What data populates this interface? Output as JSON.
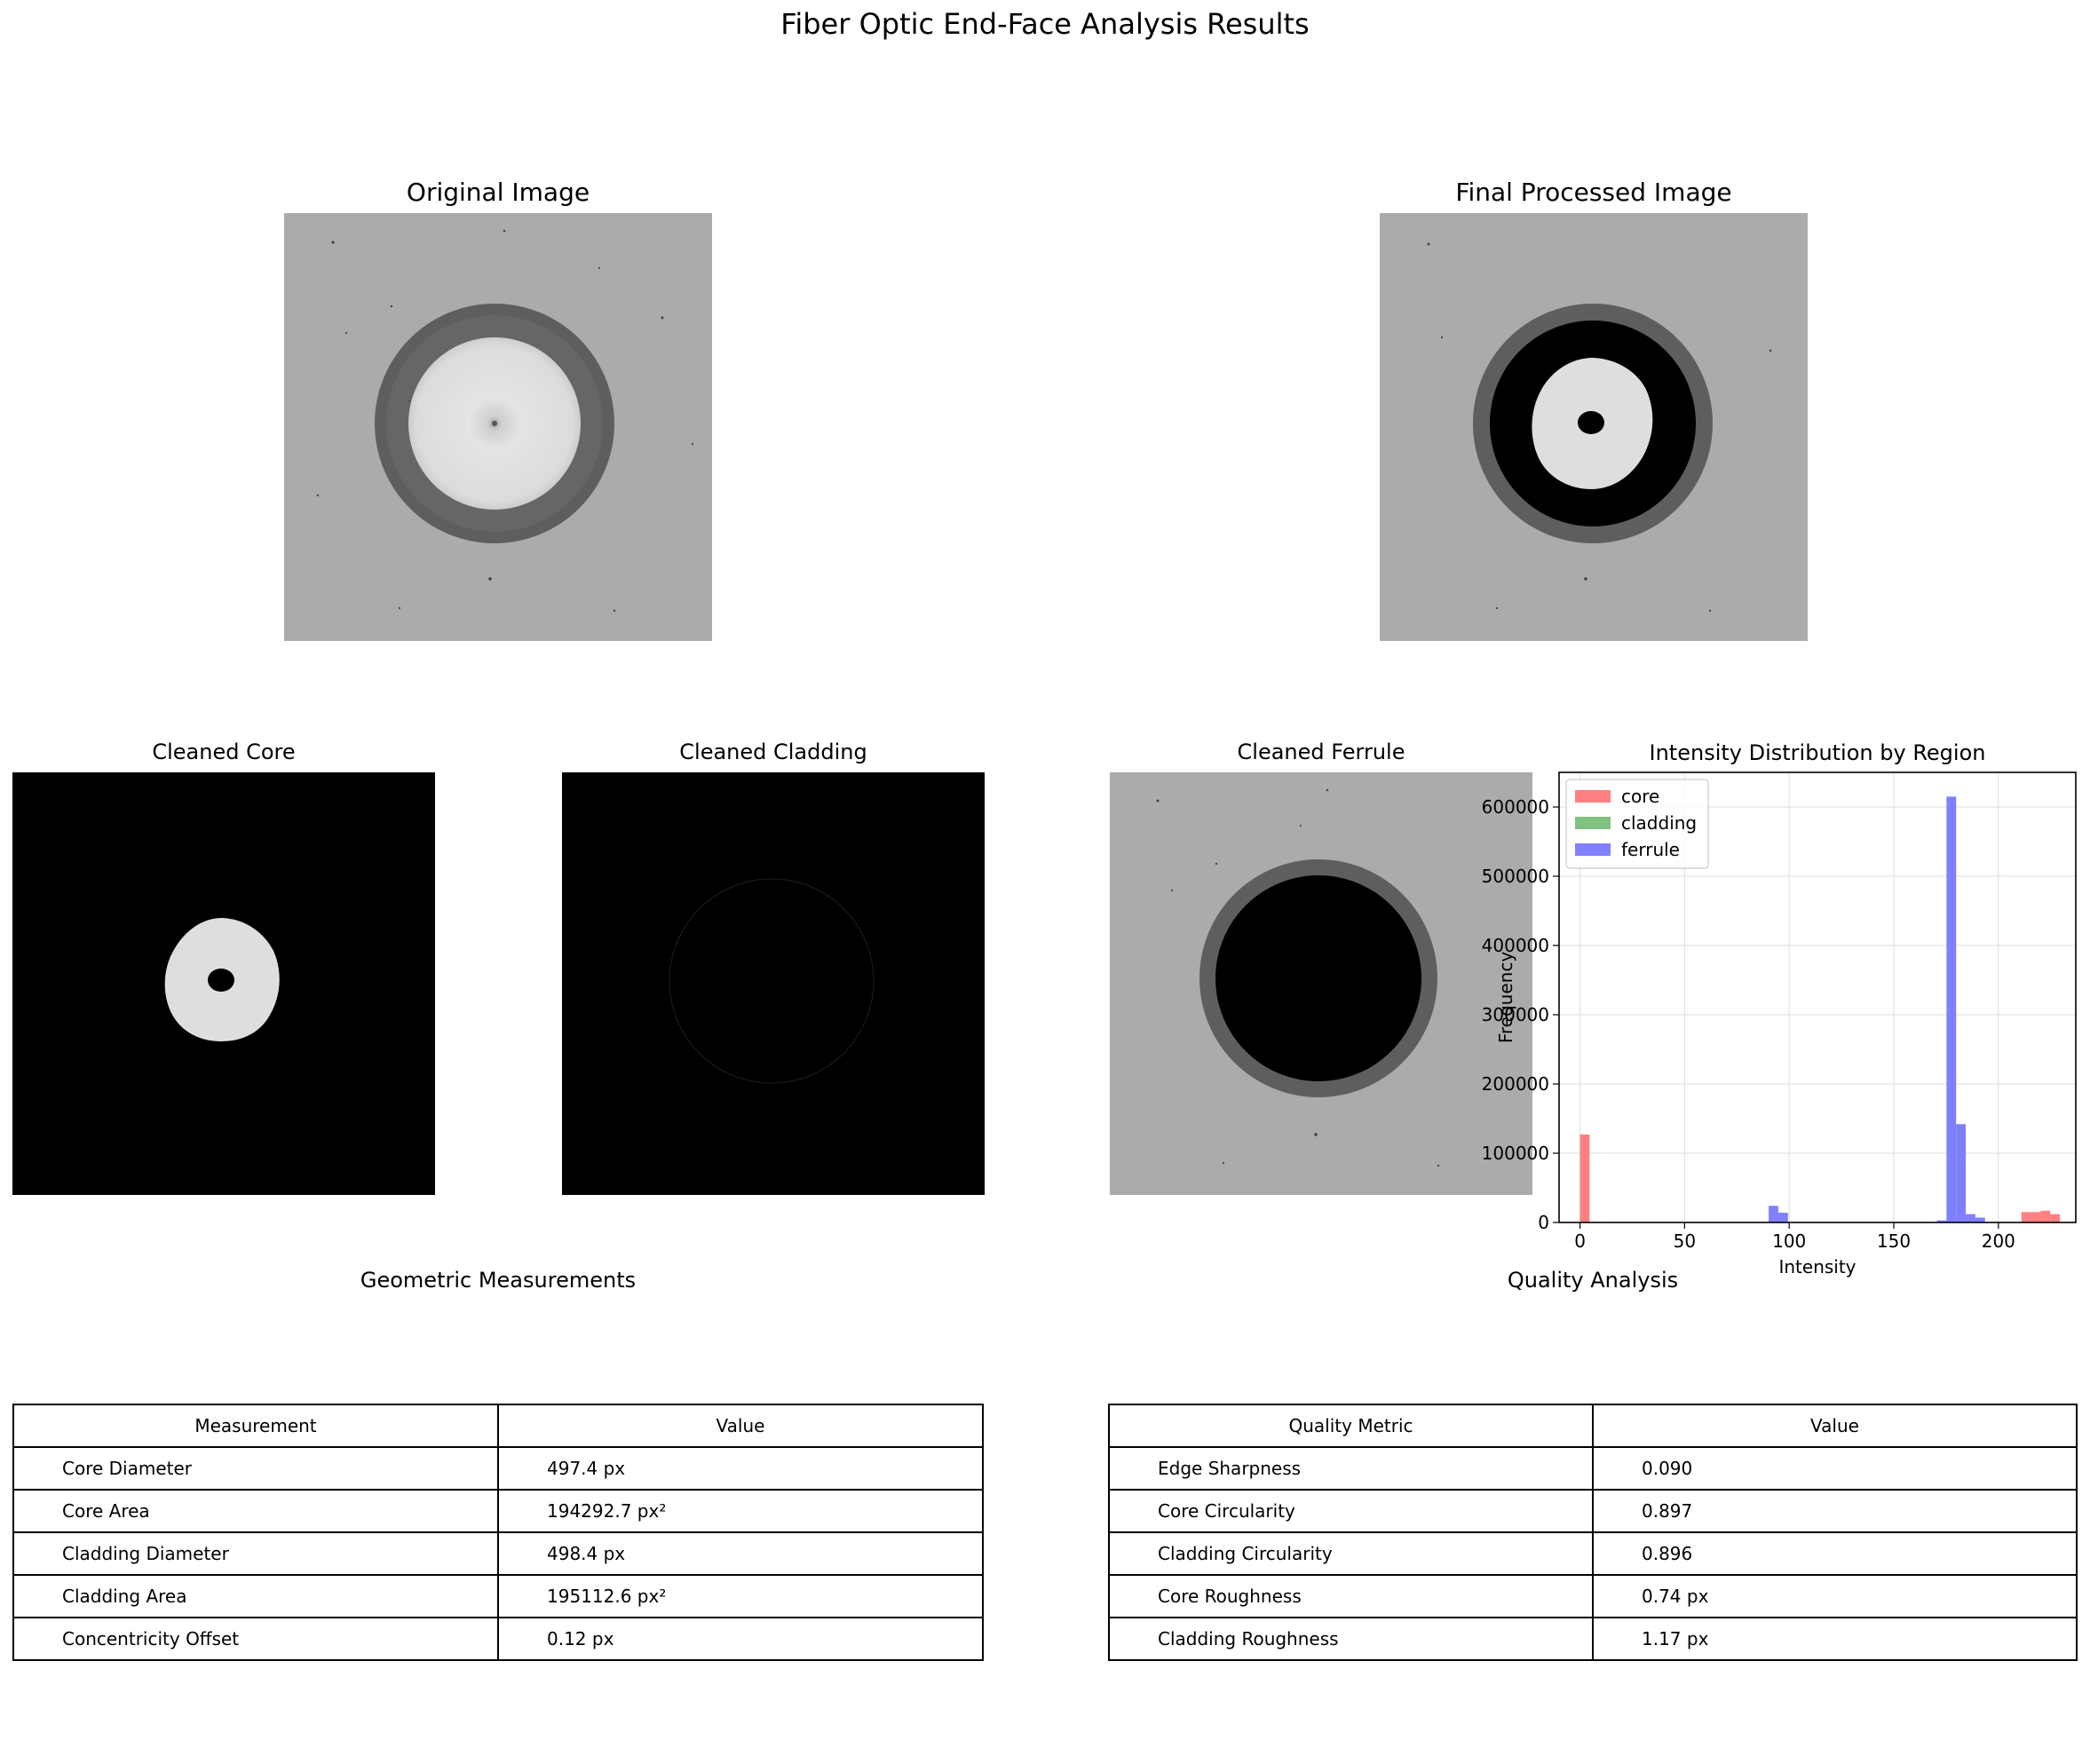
{
  "figure": {
    "title": "Fiber Optic End-Face Analysis Results"
  },
  "panels": {
    "original": {
      "title": "Original Image"
    },
    "final": {
      "title": "Final Processed Image"
    },
    "core": {
      "title": "Cleaned Core"
    },
    "cladding": {
      "title": "Cleaned Cladding"
    },
    "ferrule": {
      "title": "Cleaned Ferrule"
    }
  },
  "chart_data": {
    "type": "bar",
    "title": "Intensity Distribution by Region",
    "xlabel": "Intensity",
    "ylabel": "Frequency",
    "xlim": [
      -10,
      237
    ],
    "ylim": [
      0,
      650000
    ],
    "xticks": [
      0,
      50,
      100,
      150,
      200
    ],
    "yticks": [
      0,
      100000,
      200000,
      300000,
      400000,
      500000,
      600000
    ],
    "grid": true,
    "legend_position": "top-left",
    "bin_width": 4.6,
    "series": [
      {
        "name": "core",
        "color": "#ff8080",
        "bins": [
          [
            0,
            127000
          ],
          [
            211,
            15000
          ],
          [
            215.6,
            15000
          ],
          [
            220.2,
            17000
          ],
          [
            224.8,
            12000
          ]
        ]
      },
      {
        "name": "cladding",
        "color": "#80c080",
        "bins": []
      },
      {
        "name": "ferrule",
        "color": "#8080ff",
        "bins": [
          [
            90.2,
            24000
          ],
          [
            94.8,
            14000
          ],
          [
            170.6,
            3000
          ],
          [
            175.2,
            615000
          ],
          [
            179.8,
            142000
          ],
          [
            184.4,
            12000
          ],
          [
            189,
            7000
          ]
        ]
      }
    ]
  },
  "tables": {
    "geometric": {
      "title": "Geometric Measurements",
      "headers": [
        "Measurement",
        "Value"
      ],
      "rows": [
        [
          "Core Diameter",
          "497.4 px"
        ],
        [
          "Core Area",
          "194292.7 px²"
        ],
        [
          "Cladding Diameter",
          "498.4 px"
        ],
        [
          "Cladding Area",
          "195112.6 px²"
        ],
        [
          "Concentricity Offset",
          "0.12 px"
        ]
      ]
    },
    "quality": {
      "title": "Quality Analysis",
      "headers": [
        "Quality Metric",
        "Value"
      ],
      "rows": [
        [
          "Edge Sharpness",
          "0.090"
        ],
        [
          "Core Circularity",
          "0.897"
        ],
        [
          "Cladding Circularity",
          "0.896"
        ],
        [
          "Core Roughness",
          "0.74 px"
        ],
        [
          "Cladding Roughness",
          "1.17 px"
        ]
      ]
    }
  }
}
